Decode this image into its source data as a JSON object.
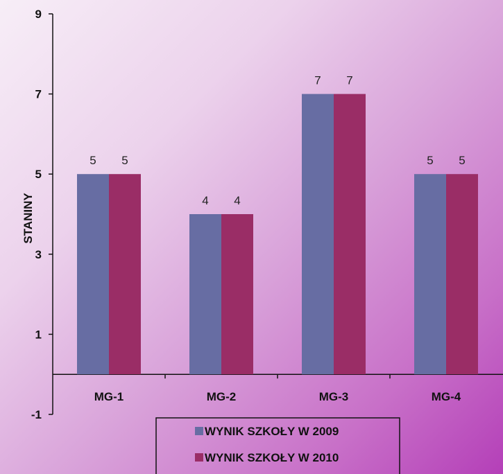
{
  "chart_data": {
    "type": "bar",
    "title": "",
    "xlabel": "",
    "ylabel": "STANINY",
    "ylim": [
      -1,
      9
    ],
    "yticks": [
      -1,
      1,
      3,
      5,
      7,
      9
    ],
    "grid": false,
    "legend_position": "bottom",
    "categories": [
      "MG-1",
      "MG-2",
      "MG-3",
      "MG-4"
    ],
    "series": [
      {
        "name": "WYNIK SZKOŁY W 2009",
        "values": [
          5,
          4,
          7,
          5
        ],
        "color": "#676da3"
      },
      {
        "name": "WYNIK SZKOŁY W 2010",
        "values": [
          5,
          4,
          7,
          5
        ],
        "color": "#9a2d66"
      }
    ]
  }
}
